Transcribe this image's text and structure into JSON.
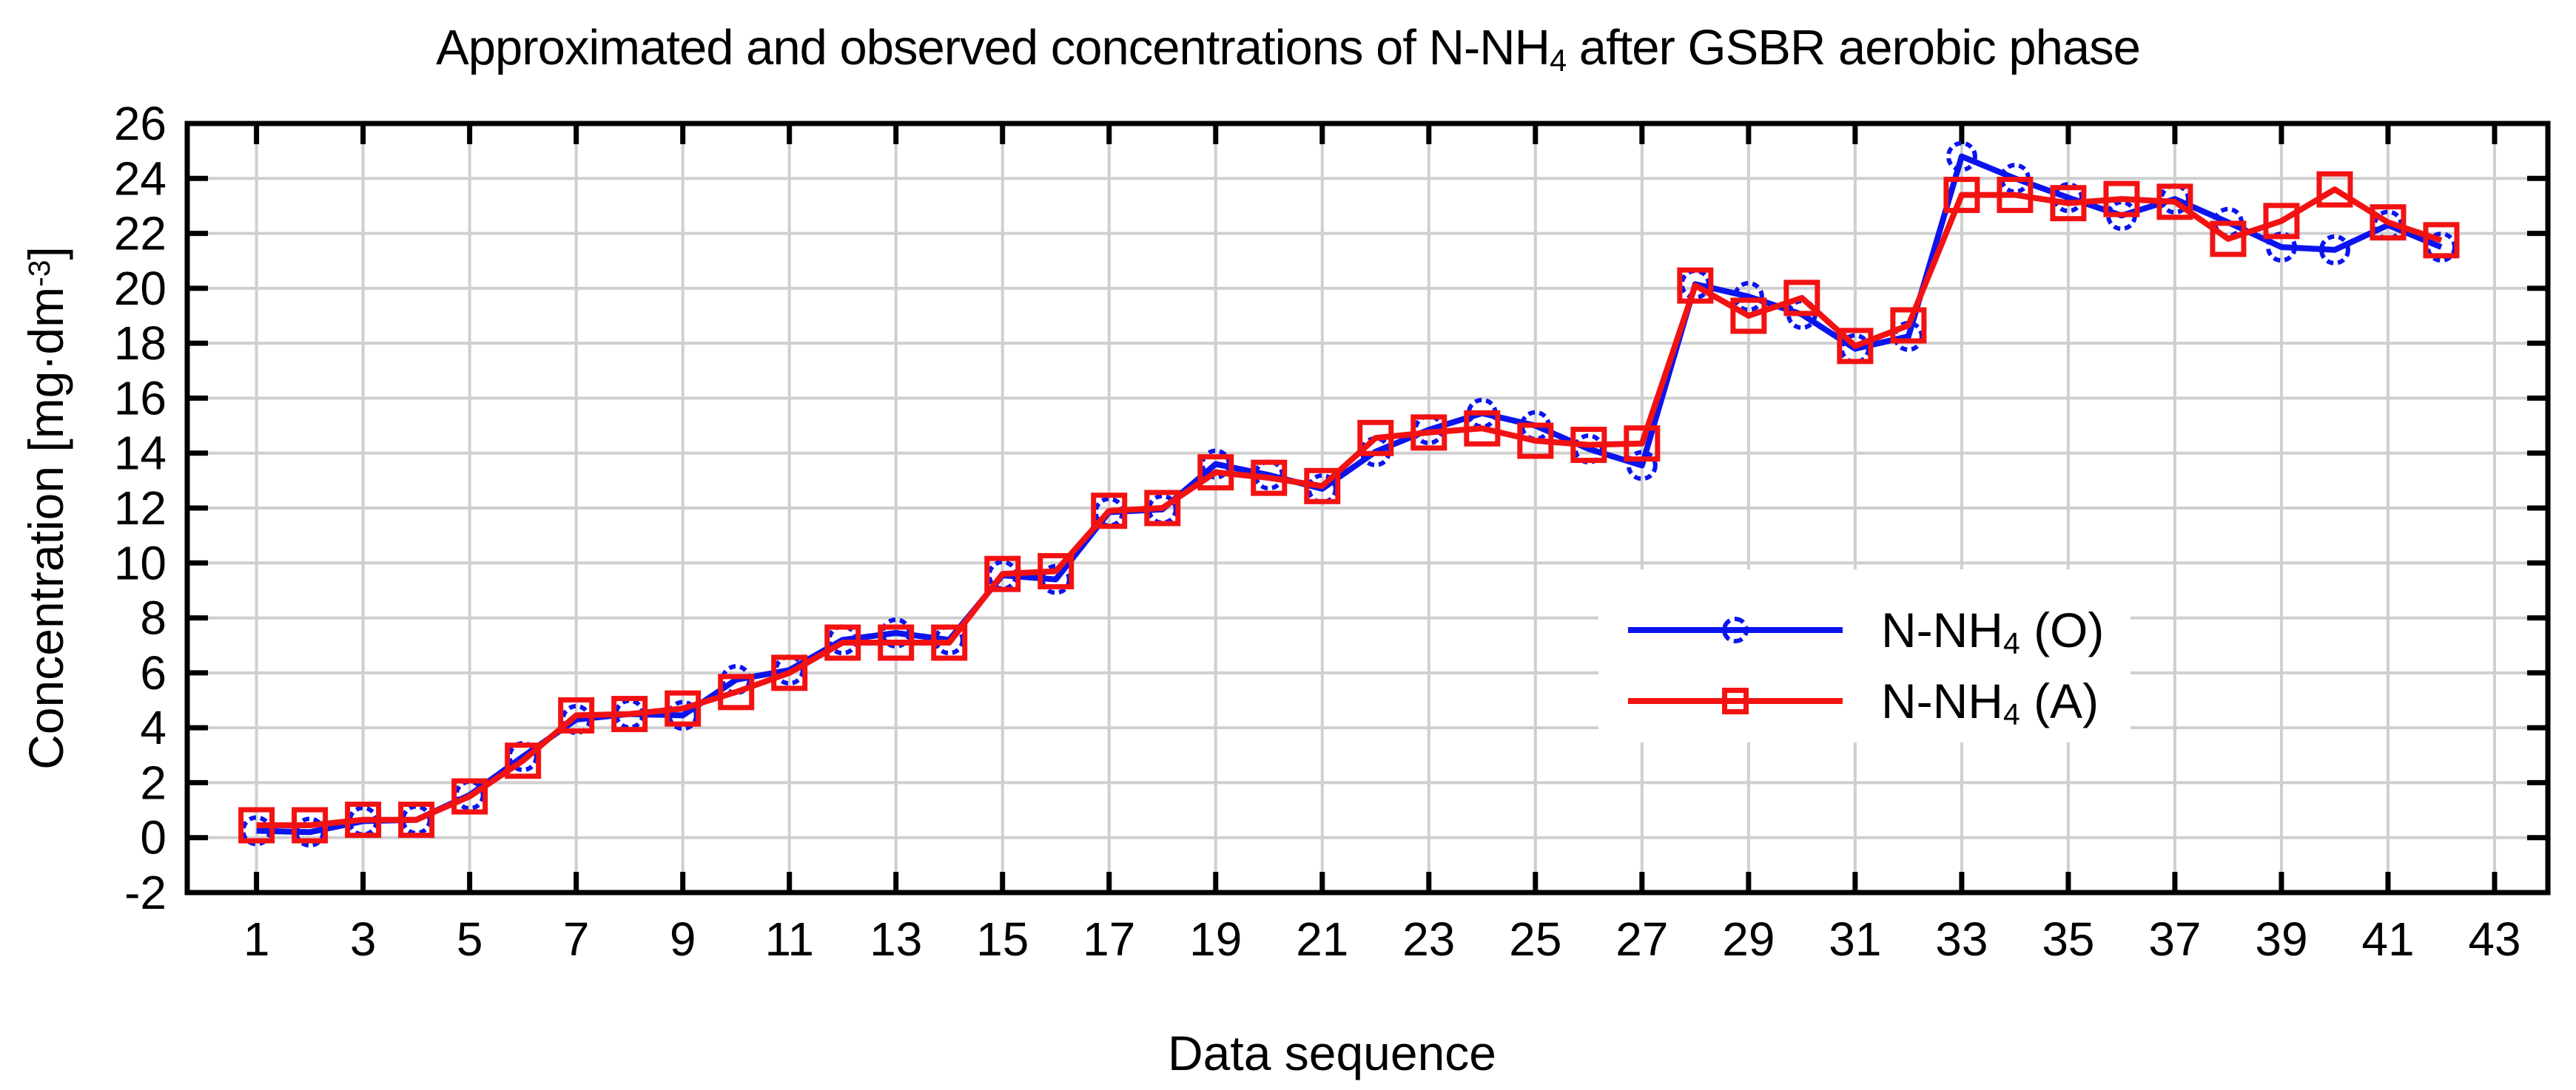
{
  "title": {
    "pre": "Approximated and observed concentrations of N-NH",
    "sub": "4",
    "post": " after GSBR aerobic phase"
  },
  "axes": {
    "x_label": "Data sequence",
    "y_label_pre": "Concentration [mg·dm",
    "y_label_sup": "-3",
    "y_label_post": "]"
  },
  "legend": {
    "items": [
      {
        "label_pre": "N-NH",
        "label_sub": "4",
        "label_post": " (O)",
        "series": "observed",
        "marker": "circle",
        "color": "#0c14ee"
      },
      {
        "label_pre": "N-NH",
        "label_sub": "4",
        "label_post": " (A)",
        "series": "approximated",
        "marker": "square",
        "color": "#f21212"
      }
    ]
  },
  "chart_data": {
    "type": "line",
    "title": "Approximated and observed concentrations of N-NH4 after GSBR aerobic phase",
    "xlabel": "Data sequence",
    "ylabel": "Concentration [mg·dm⁻³]",
    "xlim": [
      -0.3,
      44.0
    ],
    "ylim": [
      -2,
      26
    ],
    "grid": true,
    "grid_color": "#cfcfcf",
    "axis_color": "#000000",
    "legend_position": "center-right",
    "x_ticks": [
      1,
      3,
      5,
      7,
      9,
      11,
      13,
      15,
      17,
      19,
      21,
      23,
      25,
      27,
      29,
      31,
      33,
      35,
      37,
      39,
      41,
      43
    ],
    "y_ticks": [
      -2,
      0,
      2,
      4,
      6,
      8,
      10,
      12,
      14,
      16,
      18,
      20,
      22,
      24,
      26
    ],
    "x": [
      1,
      2,
      3,
      4,
      5,
      6,
      7,
      8,
      9,
      10,
      11,
      12,
      13,
      14,
      15,
      16,
      17,
      18,
      19,
      20,
      21,
      22,
      23,
      24,
      25,
      26,
      27,
      28,
      29,
      30,
      31,
      32,
      33,
      34,
      35,
      36,
      37,
      38,
      39,
      40,
      41,
      42
    ],
    "series": [
      {
        "name": "N-NH4 (O)",
        "role": "observed",
        "color": "#0c14ee",
        "marker": "circle",
        "values": [
          0.25,
          0.2,
          0.6,
          0.65,
          1.55,
          2.95,
          4.3,
          4.5,
          4.45,
          5.75,
          6.1,
          7.2,
          7.45,
          7.2,
          9.55,
          9.4,
          11.85,
          11.95,
          13.6,
          13.2,
          12.7,
          14.05,
          14.85,
          15.45,
          15.0,
          14.15,
          13.55,
          20.15,
          19.7,
          19.05,
          17.8,
          18.25,
          24.8,
          24.0,
          23.3,
          22.65,
          23.25,
          22.4,
          21.5,
          21.4,
          22.3,
          21.5
        ]
      },
      {
        "name": "N-NH4 (A)",
        "role": "approximated",
        "color": "#f21212",
        "marker": "square",
        "values": [
          0.45,
          0.45,
          0.65,
          0.65,
          1.5,
          2.8,
          4.45,
          4.5,
          4.7,
          5.3,
          6.0,
          7.1,
          7.1,
          7.1,
          9.6,
          9.7,
          11.9,
          12.0,
          13.3,
          13.1,
          12.8,
          14.55,
          14.75,
          14.9,
          14.45,
          14.3,
          14.35,
          20.1,
          19.0,
          19.65,
          17.9,
          18.65,
          23.4,
          23.4,
          23.1,
          23.25,
          23.15,
          21.8,
          22.45,
          23.6,
          22.4,
          21.75
        ]
      }
    ]
  }
}
